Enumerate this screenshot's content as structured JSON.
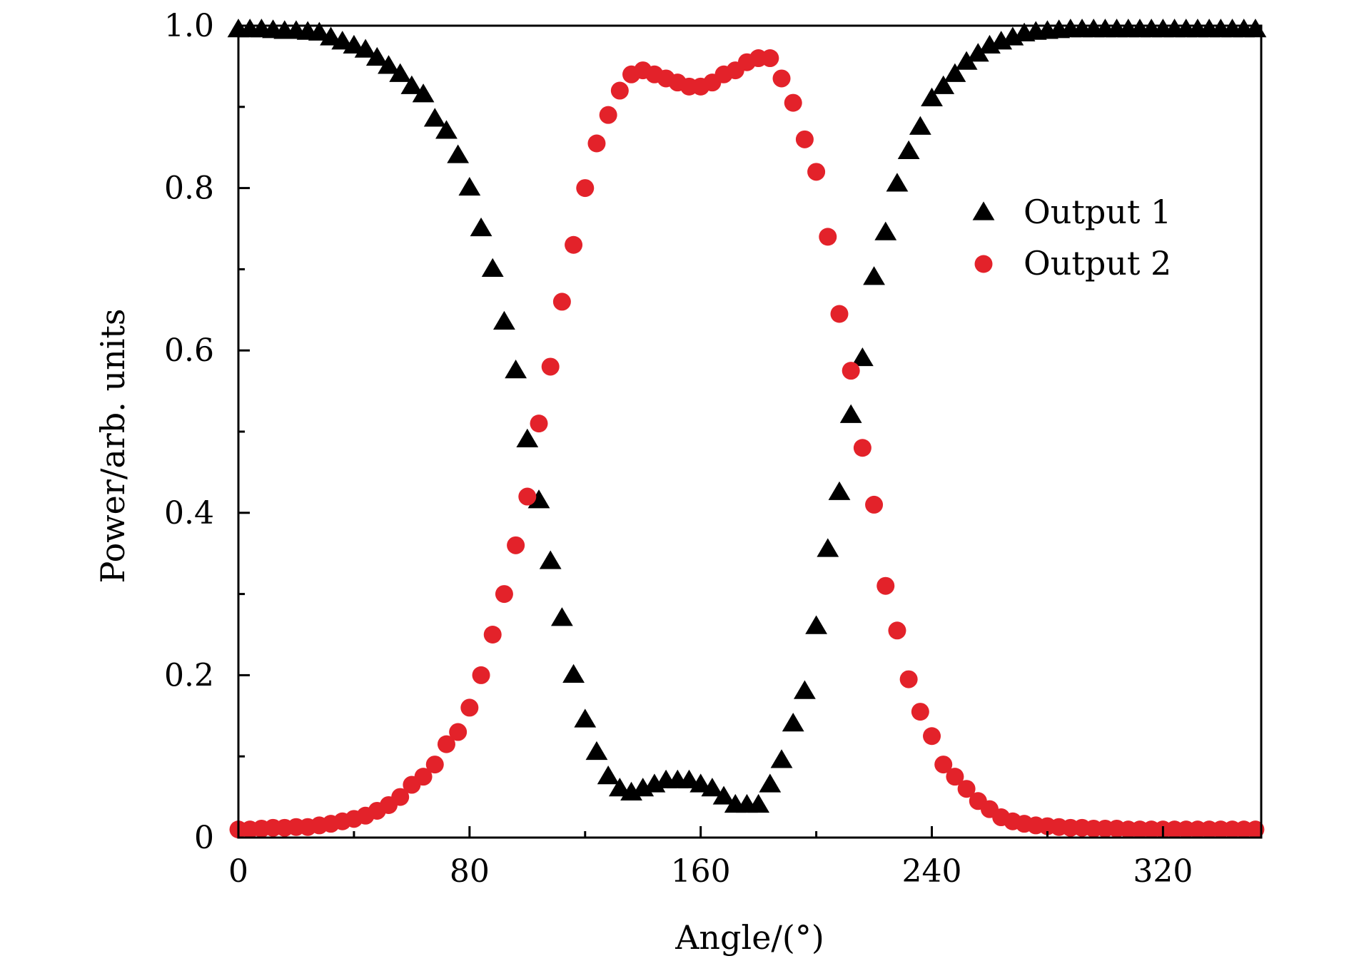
{
  "chart_data": {
    "type": "scatter",
    "xlabel": "Angle/(°)",
    "ylabel": "Power/arb. units",
    "xlim": [
      0,
      354
    ],
    "ylim": [
      0,
      1.0
    ],
    "x_ticks": [
      0,
      80,
      160,
      240,
      320
    ],
    "x_tick_labels": [
      "0",
      "80",
      "160",
      "240",
      "320"
    ],
    "y_ticks": [
      0,
      0.2,
      0.4,
      0.6,
      0.8,
      1.0
    ],
    "y_tick_labels": [
      "0",
      "0.2",
      "0.4",
      "0.6",
      "0.8",
      "1.0"
    ],
    "grid": false,
    "legend_position": "right",
    "series": [
      {
        "name": "Output 1",
        "marker": "triangle",
        "color": "#000000",
        "x": [
          0,
          4,
          8,
          12,
          16,
          20,
          24,
          28,
          32,
          36,
          40,
          44,
          48,
          52,
          56,
          60,
          64,
          68,
          72,
          76,
          80,
          84,
          88,
          92,
          96,
          100,
          104,
          108,
          112,
          116,
          120,
          124,
          128,
          132,
          136,
          140,
          144,
          148,
          152,
          156,
          160,
          164,
          168,
          172,
          176,
          180,
          184,
          188,
          192,
          196,
          200,
          204,
          208,
          212,
          216,
          220,
          224,
          228,
          232,
          236,
          240,
          244,
          248,
          252,
          256,
          260,
          264,
          268,
          272,
          276,
          280,
          284,
          288,
          292,
          296,
          300,
          304,
          308,
          312,
          316,
          320,
          324,
          328,
          332,
          336,
          340,
          344,
          348,
          352
        ],
        "y": [
          0.995,
          0.995,
          0.995,
          0.994,
          0.993,
          0.993,
          0.992,
          0.991,
          0.985,
          0.98,
          0.975,
          0.97,
          0.96,
          0.95,
          0.94,
          0.925,
          0.915,
          0.885,
          0.87,
          0.84,
          0.8,
          0.75,
          0.7,
          0.635,
          0.575,
          0.49,
          0.415,
          0.34,
          0.27,
          0.2,
          0.145,
          0.105,
          0.075,
          0.06,
          0.055,
          0.06,
          0.065,
          0.07,
          0.07,
          0.07,
          0.065,
          0.06,
          0.05,
          0.04,
          0.04,
          0.04,
          0.065,
          0.095,
          0.14,
          0.18,
          0.26,
          0.355,
          0.425,
          0.52,
          0.59,
          0.69,
          0.745,
          0.805,
          0.845,
          0.875,
          0.91,
          0.925,
          0.94,
          0.955,
          0.965,
          0.975,
          0.98,
          0.985,
          0.99,
          0.992,
          0.993,
          0.994,
          0.995,
          0.995,
          0.995,
          0.995,
          0.995,
          0.995,
          0.995,
          0.995,
          0.995,
          0.995,
          0.995,
          0.995,
          0.995,
          0.995,
          0.995,
          0.995,
          0.995
        ]
      },
      {
        "name": "Output 2",
        "marker": "circle",
        "color": "#e3222a",
        "x": [
          0,
          4,
          8,
          12,
          16,
          20,
          24,
          28,
          32,
          36,
          40,
          44,
          48,
          52,
          56,
          60,
          64,
          68,
          72,
          76,
          80,
          84,
          88,
          92,
          96,
          100,
          104,
          108,
          112,
          116,
          120,
          124,
          128,
          132,
          136,
          140,
          144,
          148,
          152,
          156,
          160,
          164,
          168,
          172,
          176,
          180,
          184,
          188,
          192,
          196,
          200,
          204,
          208,
          212,
          216,
          220,
          224,
          228,
          232,
          236,
          240,
          244,
          248,
          252,
          256,
          260,
          264,
          268,
          272,
          276,
          280,
          284,
          288,
          292,
          296,
          300,
          304,
          308,
          312,
          316,
          320,
          324,
          328,
          332,
          336,
          340,
          344,
          348,
          352
        ],
        "y": [
          0.01,
          0.01,
          0.011,
          0.012,
          0.012,
          0.013,
          0.013,
          0.015,
          0.017,
          0.02,
          0.023,
          0.027,
          0.033,
          0.04,
          0.05,
          0.065,
          0.075,
          0.09,
          0.115,
          0.13,
          0.16,
          0.2,
          0.25,
          0.3,
          0.36,
          0.42,
          0.51,
          0.58,
          0.66,
          0.73,
          0.8,
          0.855,
          0.89,
          0.92,
          0.94,
          0.945,
          0.94,
          0.935,
          0.93,
          0.925,
          0.925,
          0.93,
          0.94,
          0.945,
          0.955,
          0.96,
          0.96,
          0.935,
          0.905,
          0.86,
          0.82,
          0.74,
          0.645,
          0.575,
          0.48,
          0.41,
          0.31,
          0.255,
          0.195,
          0.155,
          0.125,
          0.09,
          0.075,
          0.06,
          0.045,
          0.035,
          0.025,
          0.02,
          0.017,
          0.015,
          0.014,
          0.013,
          0.012,
          0.012,
          0.011,
          0.011,
          0.011,
          0.01,
          0.01,
          0.01,
          0.01,
          0.01,
          0.01,
          0.01,
          0.01,
          0.01,
          0.01,
          0.01,
          0.01
        ]
      }
    ]
  }
}
